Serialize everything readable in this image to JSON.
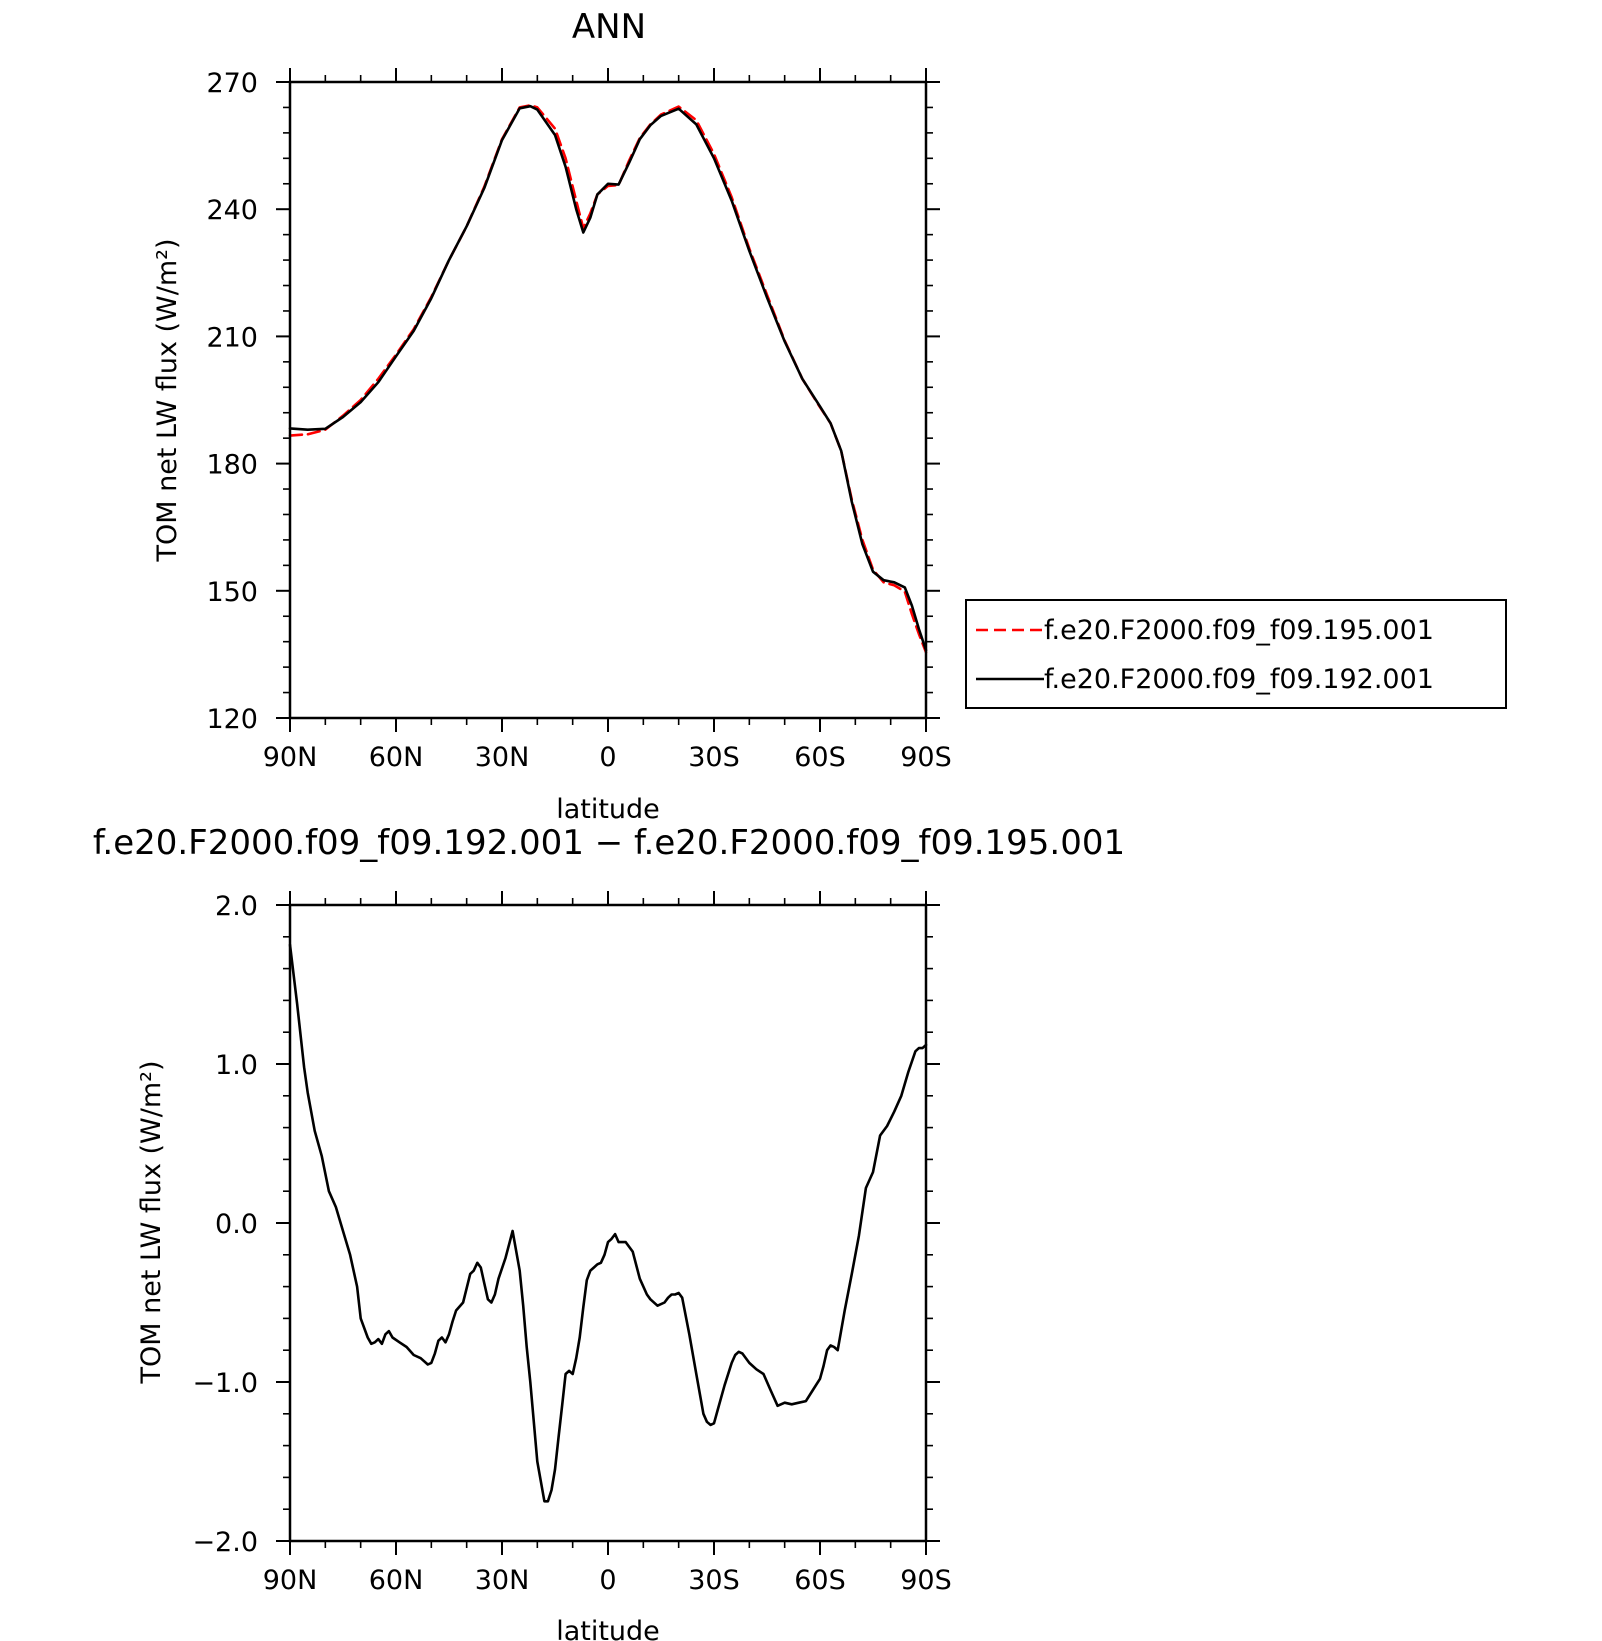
{
  "chart_data": [
    {
      "type": "line",
      "title": "ANN",
      "xlabel": "latitude",
      "ylabel": "TOM net LW flux (W/m²)",
      "xlim": [
        90,
        -90
      ],
      "ylim": [
        120,
        270
      ],
      "x_tick_values": [
        90,
        60,
        30,
        0,
        -30,
        -60,
        -90
      ],
      "x_tick_labels": [
        "90N",
        "60N",
        "30N",
        "0",
        "30S",
        "60S",
        "90S"
      ],
      "y_tick_values": [
        120,
        150,
        180,
        210,
        240,
        270
      ],
      "y_tick_labels": [
        "120",
        "150",
        "180",
        "210",
        "240",
        "270"
      ],
      "grid": false,
      "legend_position": "right",
      "x": [
        90,
        85,
        80,
        75,
        70,
        65,
        60,
        55,
        50,
        45,
        40,
        35,
        30,
        25,
        22,
        20,
        15,
        12,
        9,
        7,
        5,
        3,
        0,
        -3,
        -6,
        -9,
        -12,
        -15,
        -20,
        -25,
        -30,
        -35,
        -40,
        -45,
        -50,
        -55,
        -60,
        -63,
        -66,
        -69,
        -72,
        -75,
        -78,
        -81,
        -84,
        -86,
        -88,
        -90
      ],
      "series": [
        {
          "name": "f.e20.F2000.f09_f09.195.001",
          "color": "#ff0000",
          "dash": "dashed",
          "values": [
            186.6,
            186.9,
            188,
            191.3,
            195,
            200,
            205.7,
            211.7,
            219.3,
            228,
            236,
            245.3,
            256.5,
            264,
            264.5,
            264,
            259,
            252,
            242,
            235.5,
            239,
            243.5,
            245.5,
            245.7,
            251.5,
            256.8,
            260,
            262.3,
            264.2,
            261,
            253,
            242.8,
            230.7,
            219.8,
            209,
            200,
            193.3,
            189.5,
            183,
            171.5,
            162,
            155,
            152,
            151.3,
            149.8,
            144.5,
            139.8,
            135.5
          ]
        },
        {
          "name": "f.e20.F2000.f09_f09.192.001",
          "color": "#000000",
          "dash": "solid",
          "values": [
            188.3,
            188,
            188.2,
            191,
            194.5,
            199.2,
            205.3,
            211.3,
            219,
            228,
            236,
            245,
            256.3,
            263.8,
            264.3,
            263.5,
            257.5,
            250,
            240,
            234.5,
            238,
            243.5,
            246,
            245.8,
            251,
            256.5,
            259.8,
            262,
            263.7,
            260,
            252,
            242,
            230.2,
            219.2,
            208.8,
            200,
            193.5,
            189.5,
            183,
            171,
            161,
            154.5,
            152.5,
            152,
            150.8,
            146.5,
            141,
            136
          ]
        }
      ]
    },
    {
      "type": "line",
      "title": "f.e20.F2000.f09_f09.192.001 − f.e20.F2000.f09_f09.195.001",
      "xlabel": "latitude",
      "ylabel": "TOM net LW flux (W/m²)",
      "xlim": [
        90,
        -90
      ],
      "ylim": [
        -2.0,
        2.0
      ],
      "x_tick_values": [
        90,
        60,
        30,
        0,
        -30,
        -60,
        -90
      ],
      "x_tick_labels": [
        "90N",
        "60N",
        "30N",
        "0",
        "30S",
        "60S",
        "90S"
      ],
      "y_tick_values": [
        -2.0,
        -1.0,
        0.0,
        1.0,
        2.0
      ],
      "y_tick_labels": [
        "−2.0",
        "−1.0",
        "0.0",
        "1.0",
        "2.0"
      ],
      "grid": false,
      "x": [
        90,
        88,
        86,
        85,
        83,
        81,
        79,
        77,
        75,
        73,
        71,
        70,
        68,
        67,
        66,
        65,
        64,
        63,
        62,
        61,
        59,
        57,
        55,
        53,
        51,
        50,
        49,
        48,
        47,
        46,
        45,
        44,
        43,
        41,
        39,
        38,
        37,
        36,
        35,
        34,
        33,
        32,
        31,
        29,
        27,
        25,
        24,
        23,
        22,
        20,
        18,
        17,
        16,
        15,
        14,
        13,
        12,
        11,
        10,
        9,
        8,
        7,
        6,
        5,
        4,
        3,
        2,
        1,
        0,
        -1,
        -2,
        -3,
        -4,
        -5,
        -7,
        -9,
        -11,
        -12,
        -14,
        -16,
        -17,
        -18,
        -19,
        -20,
        -21,
        -23,
        -25,
        -27,
        -28,
        -29,
        -30,
        -31,
        -33,
        -35,
        -36,
        -37,
        -38,
        -40,
        -42,
        -44,
        -46,
        -48,
        -50,
        -52,
        -54,
        -56,
        -58,
        -60,
        -61,
        -62,
        -63,
        -64,
        -65,
        -67,
        -69,
        -71,
        -73,
        -75,
        -77,
        -79,
        -81,
        -83,
        -85,
        -87,
        -88,
        -89,
        -90
      ],
      "series": [
        {
          "color": "#000000",
          "dash": "solid",
          "values": [
            1.75,
            1.38,
            0.98,
            0.82,
            0.58,
            0.42,
            0.2,
            0.1,
            -0.05,
            -0.2,
            -0.4,
            -0.6,
            -0.72,
            -0.76,
            -0.75,
            -0.73,
            -0.76,
            -0.7,
            -0.68,
            -0.72,
            -0.75,
            -0.78,
            -0.83,
            -0.85,
            -0.89,
            -0.88,
            -0.82,
            -0.74,
            -0.72,
            -0.75,
            -0.7,
            -0.62,
            -0.55,
            -0.5,
            -0.32,
            -0.3,
            -0.25,
            -0.28,
            -0.38,
            -0.48,
            -0.5,
            -0.45,
            -0.35,
            -0.22,
            -0.05,
            -0.3,
            -0.52,
            -0.78,
            -1.0,
            -1.5,
            -1.75,
            -1.75,
            -1.68,
            -1.55,
            -1.35,
            -1.15,
            -0.95,
            -0.93,
            -0.95,
            -0.85,
            -0.72,
            -0.53,
            -0.36,
            -0.3,
            -0.28,
            -0.26,
            -0.25,
            -0.2,
            -0.12,
            -0.1,
            -0.07,
            -0.12,
            -0.12,
            -0.12,
            -0.18,
            -0.35,
            -0.45,
            -0.48,
            -0.52,
            -0.5,
            -0.47,
            -0.45,
            -0.45,
            -0.44,
            -0.47,
            -0.7,
            -0.95,
            -1.2,
            -1.25,
            -1.27,
            -1.26,
            -1.18,
            -1.02,
            -0.88,
            -0.83,
            -0.81,
            -0.82,
            -0.88,
            -0.92,
            -0.95,
            -1.05,
            -1.15,
            -1.13,
            -1.14,
            -1.13,
            -1.12,
            -1.05,
            -0.98,
            -0.9,
            -0.8,
            -0.77,
            -0.78,
            -0.8,
            -0.55,
            -0.32,
            -0.08,
            0.22,
            0.32,
            0.55,
            0.61,
            0.7,
            0.8,
            0.95,
            1.08,
            1.1,
            1.1,
            1.12
          ]
        }
      ]
    }
  ]
}
